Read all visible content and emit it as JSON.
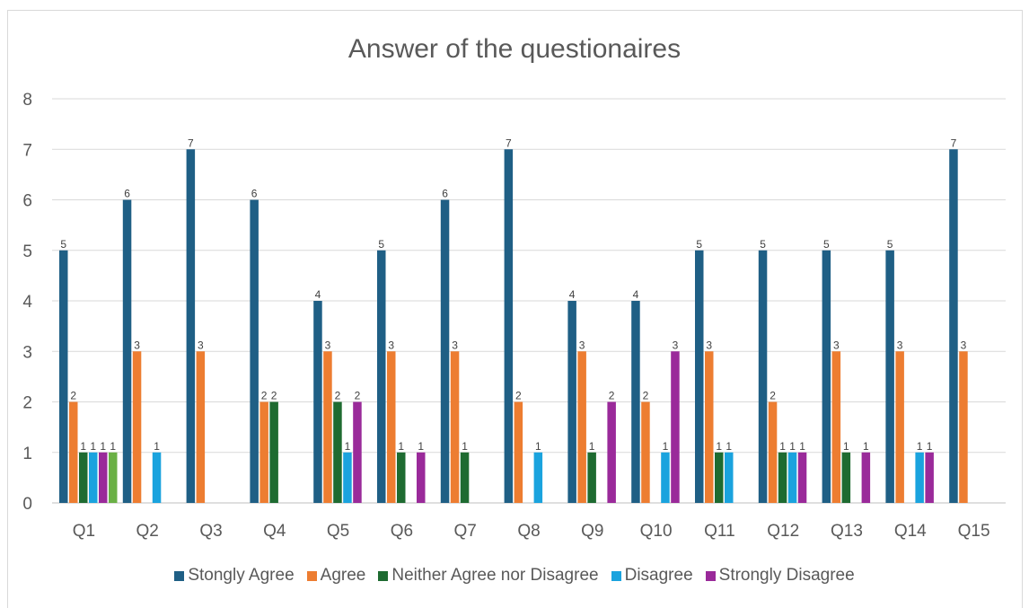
{
  "chart_data": {
    "type": "bar",
    "title": "Answer of the questionaires",
    "xlabel": "",
    "ylabel": "",
    "ylim": [
      0,
      8
    ],
    "yticks": [
      0,
      1,
      2,
      3,
      4,
      5,
      6,
      7,
      8
    ],
    "grid": true,
    "legend_position": "bottom",
    "categories": [
      "Q1",
      "Q2",
      "Q3",
      "Q4",
      "Q5",
      "Q6",
      "Q7",
      "Q8",
      "Q9",
      "Q10",
      "Q11",
      "Q12",
      "Q13",
      "Q14",
      "Q15"
    ],
    "series": [
      {
        "name": "Stongly Agree",
        "color": "#1f5f85",
        "values": [
          5,
          6,
          7,
          6,
          4,
          5,
          6,
          7,
          4,
          4,
          5,
          5,
          5,
          5,
          7
        ]
      },
      {
        "name": "Agree",
        "color": "#ed7d31",
        "values": [
          2,
          3,
          3,
          2,
          3,
          3,
          3,
          2,
          3,
          2,
          3,
          2,
          3,
          3,
          3
        ]
      },
      {
        "name": "Neither Agree nor Disagree",
        "color": "#1e6b31",
        "values": [
          1,
          0,
          0,
          2,
          2,
          1,
          1,
          0,
          1,
          0,
          1,
          1,
          1,
          0,
          0
        ]
      },
      {
        "name": "Disagree",
        "color": "#1aa3de",
        "values": [
          1,
          1,
          0,
          0,
          1,
          0,
          0,
          1,
          0,
          1,
          1,
          1,
          0,
          1,
          0
        ]
      },
      {
        "name": "Strongly Disagree",
        "color": "#9a2a9a",
        "values": [
          1,
          0,
          0,
          0,
          2,
          1,
          0,
          0,
          2,
          3,
          0,
          1,
          1,
          1,
          0
        ]
      }
    ],
    "extra_bars": [
      {
        "category": "Q1",
        "value": 1,
        "color": "#6ab045"
      }
    ]
  }
}
